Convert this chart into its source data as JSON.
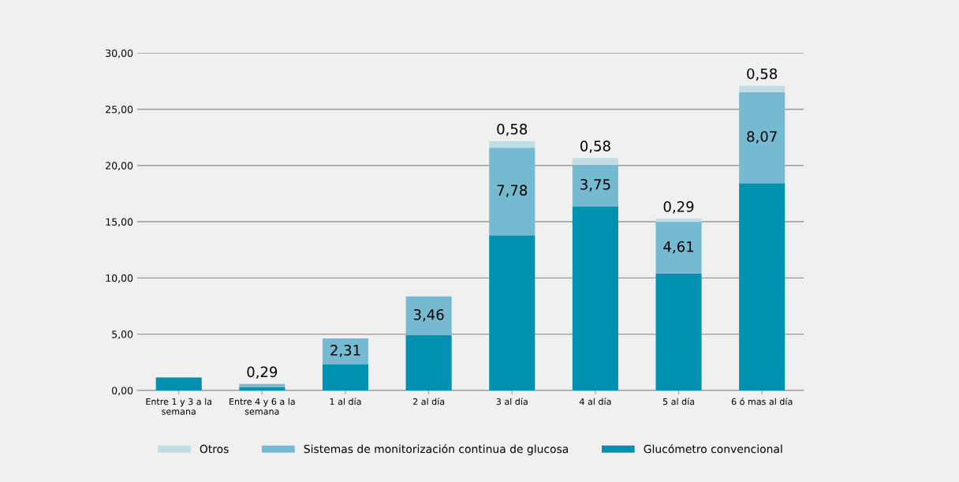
{
  "chart_data": {
    "type": "bar",
    "stacked": true,
    "categories": [
      "Entre 1 y 3 a la\nsemana",
      "Entre 4 y 6 a la\nsemana",
      "1 al día",
      "2 al día",
      "3 al día",
      "4 al día",
      "5 al día",
      "6 ó mas al día"
    ],
    "series": [
      {
        "name": "Glucómetro convencional",
        "color": "#0090b0",
        "values": [
          1.15,
          0.29,
          2.31,
          4.9,
          13.8,
          16.33,
          10.37,
          18.43
        ]
      },
      {
        "name": "Sistemas de monitorización continua de glucosa",
        "color": "#75bad0",
        "values": [
          null,
          0.29,
          2.31,
          3.46,
          7.78,
          3.75,
          4.61,
          8.07
        ],
        "value_labels": [
          null,
          "0,29",
          "2,31",
          "3,46",
          "7,78",
          "3,75",
          "4,61",
          "8,07"
        ]
      },
      {
        "name": "Otros",
        "color": "#c0dde6",
        "values": [
          null,
          null,
          null,
          null,
          0.58,
          0.58,
          0.29,
          0.58
        ],
        "value_labels": [
          null,
          null,
          null,
          null,
          "0,58",
          "0,58",
          "0,29",
          "0,58"
        ]
      }
    ],
    "ylim": [
      0,
      30
    ],
    "yticks": [
      {
        "value": 0,
        "label": "0,00"
      },
      {
        "value": 5,
        "label": "5,00"
      },
      {
        "value": 10,
        "label": "10,00"
      },
      {
        "value": 15,
        "label": "15,00"
      },
      {
        "value": 20,
        "label": "20,00"
      },
      {
        "value": 25,
        "label": "25,00"
      },
      {
        "value": 30,
        "label": "30,00"
      }
    ],
    "grid": "y",
    "legend": "bottom"
  }
}
